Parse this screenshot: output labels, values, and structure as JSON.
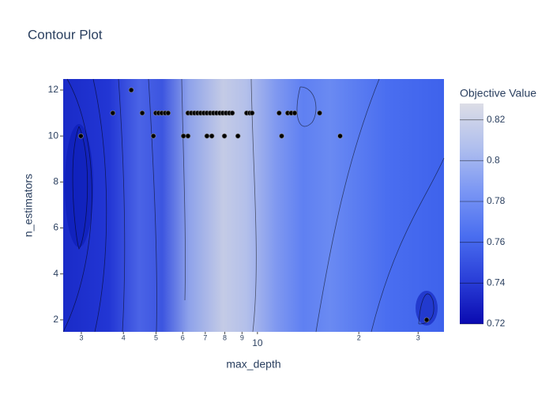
{
  "chart_data": {
    "type": "contour",
    "title": "Contour Plot",
    "x_label": "max_depth",
    "y_label": "n_estimators",
    "colorbar_title": "Objective Value",
    "log_x": true,
    "xlim": [
      2.65,
      35.8
    ],
    "xticks": [
      3,
      4,
      5,
      6,
      7,
      8,
      9,
      10,
      {
        "value": 20,
        "label": "2"
      },
      {
        "value": 30,
        "label": "3"
      }
    ],
    "ylim": [
      1.48,
      12.48
    ],
    "yticks": [
      2,
      4,
      6,
      8,
      10,
      12
    ],
    "colorlim": [
      0.72,
      0.828
    ],
    "colorticks": [
      0.72,
      0.74,
      0.76,
      0.78,
      0.8,
      0.82
    ],
    "colorscale": [
      "#0a0ab0",
      "#2a3fd8",
      "#4a6ef0",
      "#7a96f4",
      "#b0bfee",
      "#dcdde6"
    ],
    "point_color": "#000000",
    "x": [
      4.22,
      3.72,
      4.55,
      4.99,
      5.09,
      5.2,
      5.32,
      5.43,
      4.91,
      2.99,
      6.03,
      6.22,
      6.22,
      6.36,
      6.5,
      6.64,
      6.78,
      6.93,
      7.08,
      7.24,
      7.4,
      7.56,
      7.73,
      7.89,
      8.07,
      8.25,
      8.42,
      7.08,
      7.32,
      7.98,
      8.75,
      11.8,
      17.6,
      9.29,
      9.49,
      9.64,
      11.6,
      12.3,
      12.6,
      12.9,
      15.3,
      31.8
    ],
    "y": [
      12,
      11,
      11,
      11,
      11,
      11,
      11,
      11,
      10,
      10,
      10,
      10,
      11,
      11,
      11,
      11,
      11,
      11,
      11,
      11,
      11,
      11,
      11,
      11,
      11,
      11,
      11,
      10,
      10,
      10,
      10,
      10,
      10,
      11,
      11,
      11,
      11,
      11,
      11,
      11,
      11,
      2
    ]
  }
}
